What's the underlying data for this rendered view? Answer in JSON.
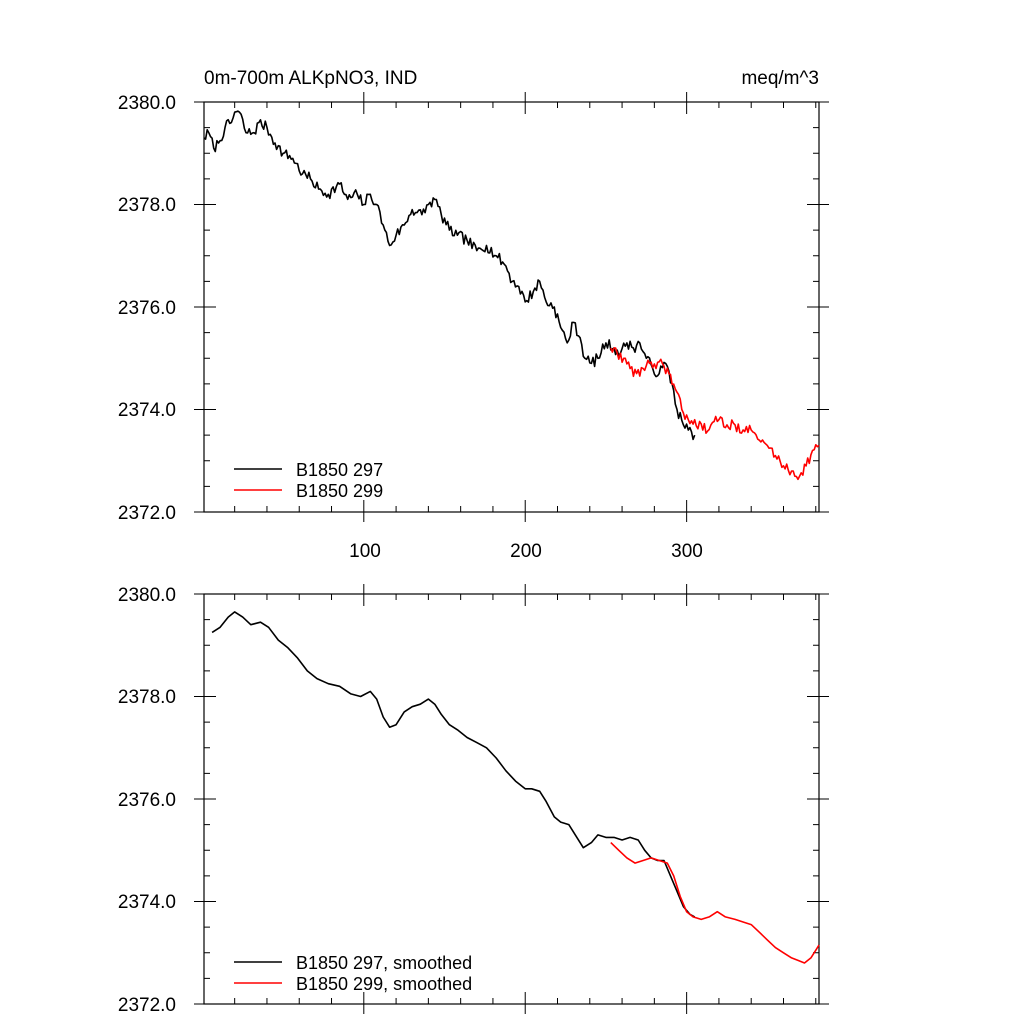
{
  "chart_data": [
    {
      "type": "line",
      "panel": "top",
      "title": "0m-700m ALKpNO3, IND",
      "units": "meq/m^3",
      "xlim": [
        1,
        382
      ],
      "ylim": [
        2372,
        2380
      ],
      "x_ticks": [
        100,
        200,
        300
      ],
      "x_tick_labels": [
        "100",
        "200",
        "300"
      ],
      "y_ticks": [
        2372,
        2374,
        2376,
        2378,
        2380
      ],
      "y_tick_labels": [
        "2372.0",
        "2374.0",
        "2376.0",
        "2378.0",
        "2380.0"
      ],
      "legend_position": "bottom-left",
      "series": [
        {
          "name": "B1850 297",
          "color": "#000000",
          "anchors": [
            [
              1,
              2379.3
            ],
            [
              4,
              2379.4
            ],
            [
              7,
              2379.1
            ],
            [
              10,
              2379.2
            ],
            [
              14,
              2379.5
            ],
            [
              18,
              2379.6
            ],
            [
              20,
              2379.8
            ],
            [
              23,
              2379.8
            ],
            [
              27,
              2379.4
            ],
            [
              32,
              2379.4
            ],
            [
              35,
              2379.6
            ],
            [
              40,
              2379.5
            ],
            [
              45,
              2379.2
            ],
            [
              50,
              2379.0
            ],
            [
              56,
              2378.9
            ],
            [
              62,
              2378.6
            ],
            [
              67,
              2378.5
            ],
            [
              72,
              2378.3
            ],
            [
              78,
              2378.2
            ],
            [
              85,
              2378.4
            ],
            [
              90,
              2378.1
            ],
            [
              96,
              2378.2
            ],
            [
              100,
              2378.0
            ],
            [
              104,
              2378.2
            ],
            [
              108,
              2378.0
            ],
            [
              112,
              2377.6
            ],
            [
              116,
              2377.2
            ],
            [
              120,
              2377.4
            ],
            [
              125,
              2377.6
            ],
            [
              130,
              2377.9
            ],
            [
              136,
              2377.8
            ],
            [
              140,
              2378.0
            ],
            [
              144,
              2378.1
            ],
            [
              148,
              2377.8
            ],
            [
              153,
              2377.5
            ],
            [
              158,
              2377.4
            ],
            [
              164,
              2377.3
            ],
            [
              170,
              2377.1
            ],
            [
              176,
              2377.2
            ],
            [
              182,
              2377.0
            ],
            [
              188,
              2376.8
            ],
            [
              192,
              2376.5
            ],
            [
              196,
              2376.4
            ],
            [
              200,
              2376.1
            ],
            [
              205,
              2376.3
            ],
            [
              209,
              2376.5
            ],
            [
              213,
              2376.1
            ],
            [
              218,
              2376.0
            ],
            [
              222,
              2375.6
            ],
            [
              226,
              2375.3
            ],
            [
              230,
              2375.7
            ],
            [
              234,
              2375.4
            ],
            [
              237,
              2375.0
            ],
            [
              241,
              2374.9
            ],
            [
              245,
              2375.0
            ],
            [
              250,
              2375.3
            ],
            [
              255,
              2375.2
            ],
            [
              259,
              2375.1
            ],
            [
              263,
              2375.3
            ],
            [
              267,
              2375.2
            ],
            [
              271,
              2375.3
            ],
            [
              275,
              2375.0
            ],
            [
              279,
              2374.8
            ],
            [
              283,
              2374.7
            ],
            [
              287,
              2374.9
            ],
            [
              291,
              2374.5
            ],
            [
              294,
              2374.0
            ],
            [
              298,
              2373.7
            ],
            [
              301,
              2373.6
            ],
            [
              305,
              2373.5
            ]
          ]
        },
        {
          "name": "B1850 299",
          "color": "#ff0000",
          "anchors": [
            [
              253,
              2375.2
            ],
            [
              257,
              2375.1
            ],
            [
              261,
              2375.0
            ],
            [
              265,
              2374.8
            ],
            [
              269,
              2374.7
            ],
            [
              273,
              2374.8
            ],
            [
              277,
              2374.9
            ],
            [
              281,
              2374.8
            ],
            [
              285,
              2374.9
            ],
            [
              289,
              2374.7
            ],
            [
              293,
              2374.4
            ],
            [
              297,
              2374.0
            ],
            [
              301,
              2373.8
            ],
            [
              305,
              2373.8
            ],
            [
              310,
              2373.6
            ],
            [
              315,
              2373.7
            ],
            [
              320,
              2373.8
            ],
            [
              325,
              2373.7
            ],
            [
              330,
              2373.7
            ],
            [
              335,
              2373.6
            ],
            [
              340,
              2373.6
            ],
            [
              345,
              2373.4
            ],
            [
              350,
              2373.3
            ],
            [
              355,
              2373.1
            ],
            [
              360,
              2372.9
            ],
            [
              365,
              2372.8
            ],
            [
              370,
              2372.7
            ],
            [
              374,
              2372.9
            ],
            [
              378,
              2373.2
            ],
            [
              382,
              2373.3
            ]
          ]
        }
      ]
    },
    {
      "type": "line",
      "panel": "bottom",
      "title": "",
      "xlim": [
        1,
        382
      ],
      "ylim": [
        2372,
        2380
      ],
      "x_ticks": [
        100,
        200,
        300
      ],
      "y_ticks": [
        2372,
        2374,
        2376,
        2378,
        2380
      ],
      "y_tick_labels": [
        "2372.0",
        "2374.0",
        "2376.0",
        "2378.0",
        "2380.0"
      ],
      "legend_position": "bottom-left",
      "series": [
        {
          "name": "B1850 297, smoothed",
          "color": "#000000",
          "anchors": [
            [
              6,
              2379.25
            ],
            [
              11,
              2379.35
            ],
            [
              16,
              2379.55
            ],
            [
              20,
              2379.65
            ],
            [
              25,
              2379.55
            ],
            [
              30,
              2379.4
            ],
            [
              36,
              2379.45
            ],
            [
              41,
              2379.35
            ],
            [
              47,
              2379.1
            ],
            [
              53,
              2378.95
            ],
            [
              59,
              2378.75
            ],
            [
              65,
              2378.5
            ],
            [
              71,
              2378.35
            ],
            [
              78,
              2378.25
            ],
            [
              85,
              2378.2
            ],
            [
              92,
              2378.05
            ],
            [
              98,
              2378.0
            ],
            [
              104,
              2378.1
            ],
            [
              108,
              2377.95
            ],
            [
              112,
              2377.6
            ],
            [
              116,
              2377.4
            ],
            [
              120,
              2377.45
            ],
            [
              125,
              2377.7
            ],
            [
              130,
              2377.8
            ],
            [
              135,
              2377.85
            ],
            [
              140,
              2377.95
            ],
            [
              144,
              2377.85
            ],
            [
              148,
              2377.65
            ],
            [
              153,
              2377.45
            ],
            [
              158,
              2377.35
            ],
            [
              164,
              2377.2
            ],
            [
              170,
              2377.1
            ],
            [
              176,
              2377.0
            ],
            [
              182,
              2376.8
            ],
            [
              188,
              2376.55
            ],
            [
              194,
              2376.35
            ],
            [
              200,
              2376.2
            ],
            [
              204,
              2376.2
            ],
            [
              209,
              2376.15
            ],
            [
              213,
              2375.95
            ],
            [
              218,
              2375.65
            ],
            [
              222,
              2375.55
            ],
            [
              227,
              2375.5
            ],
            [
              231,
              2375.3
            ],
            [
              236,
              2375.05
            ],
            [
              241,
              2375.15
            ],
            [
              245,
              2375.3
            ],
            [
              250,
              2375.25
            ],
            [
              255,
              2375.25
            ],
            [
              260,
              2375.2
            ],
            [
              265,
              2375.25
            ],
            [
              270,
              2375.2
            ],
            [
              274,
              2375.0
            ],
            [
              278,
              2374.85
            ],
            [
              282,
              2374.8
            ],
            [
              286,
              2374.8
            ],
            [
              290,
              2374.5
            ],
            [
              294,
              2374.2
            ],
            [
              298,
              2373.9
            ],
            [
              302,
              2373.75
            ],
            [
              305,
              2373.7
            ]
          ]
        },
        {
          "name": "B1850 299, smoothed",
          "color": "#ff0000",
          "anchors": [
            [
              253,
              2375.15
            ],
            [
              258,
              2375.0
            ],
            [
              263,
              2374.85
            ],
            [
              268,
              2374.75
            ],
            [
              273,
              2374.8
            ],
            [
              278,
              2374.85
            ],
            [
              283,
              2374.8
            ],
            [
              288,
              2374.75
            ],
            [
              292,
              2374.5
            ],
            [
              296,
              2374.1
            ],
            [
              300,
              2373.8
            ],
            [
              304,
              2373.7
            ],
            [
              309,
              2373.65
            ],
            [
              314,
              2373.7
            ],
            [
              319,
              2373.8
            ],
            [
              324,
              2373.7
            ],
            [
              330,
              2373.65
            ],
            [
              335,
              2373.6
            ],
            [
              340,
              2373.55
            ],
            [
              345,
              2373.4
            ],
            [
              350,
              2373.25
            ],
            [
              355,
              2373.1
            ],
            [
              360,
              2373.0
            ],
            [
              365,
              2372.9
            ],
            [
              369,
              2372.85
            ],
            [
              373,
              2372.8
            ],
            [
              377,
              2372.9
            ],
            [
              380,
              2373.05
            ],
            [
              382,
              2373.15
            ]
          ]
        }
      ]
    }
  ]
}
